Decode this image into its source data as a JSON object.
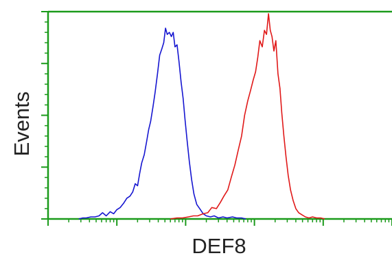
{
  "chart_data": {
    "type": "line",
    "xlabel": "DEF8",
    "ylabel": "Events",
    "x_scale": "log",
    "xlim": [
      0.1,
      10000
    ],
    "ylim": [
      0,
      100
    ],
    "grid": false,
    "legend": "none",
    "colors": {
      "frame": "#1a9a1a",
      "text": "#222222"
    },
    "series": [
      {
        "color": "#1515d0",
        "x": [
          0.28,
          0.32,
          0.36,
          0.42,
          0.48,
          0.55,
          0.62,
          0.7,
          0.8,
          0.9,
          1.0,
          1.12,
          1.25,
          1.4,
          1.55,
          1.7,
          1.85,
          2.0,
          2.15,
          2.3,
          2.5,
          2.7,
          2.9,
          3.1,
          3.35,
          3.6,
          3.9,
          4.2,
          4.5,
          4.8,
          5.1,
          5.4,
          5.8,
          6.2,
          6.6,
          7.0,
          7.5,
          8.0,
          8.6,
          9.2,
          9.8,
          10.5,
          11.3,
          12.2,
          13.2,
          14.5,
          16,
          18,
          20,
          23,
          26,
          30,
          35,
          40,
          48,
          55,
          65,
          75
        ],
        "y": [
          0,
          0.5,
          0.5,
          1,
          1,
          1.5,
          3,
          1.5,
          3.5,
          2.5,
          4.5,
          5.5,
          7.5,
          10,
          11,
          13,
          17,
          16,
          22,
          27,
          31,
          37,
          43,
          47,
          54,
          61,
          70,
          79,
          82,
          85,
          92,
          89,
          90,
          88,
          90,
          83,
          84,
          76,
          66,
          58,
          48,
          38,
          28,
          19,
          12,
          7,
          5,
          2.5,
          1.5,
          1,
          1.5,
          0.5,
          1,
          0.5,
          1,
          0.5,
          0.5,
          0
        ]
      },
      {
        "color": "#e01818",
        "x": [
          6,
          7.5,
          9,
          11,
          13,
          15,
          18,
          21,
          24,
          28,
          32,
          36,
          41,
          46,
          52,
          58,
          65,
          72,
          80,
          88,
          96,
          104,
          112,
          120,
          130,
          140,
          150,
          160,
          170,
          180,
          192,
          205,
          220,
          235,
          250,
          268,
          288,
          310,
          335,
          365,
          400,
          440,
          490,
          550,
          620,
          700,
          800,
          920,
          1050
        ],
        "y": [
          0,
          0.5,
          0.5,
          1,
          1.5,
          1.5,
          2.5,
          3,
          5.5,
          5,
          8,
          11,
          14,
          20,
          26,
          33,
          40,
          50,
          57,
          62,
          67,
          71,
          78,
          86,
          83,
          91,
          89,
          99,
          91,
          88,
          81,
          86,
          70,
          63,
          51,
          40,
          30,
          21,
          14,
          9,
          5,
          3,
          2,
          1,
          0.5,
          1,
          0.5,
          0.5,
          0
        ]
      }
    ]
  }
}
